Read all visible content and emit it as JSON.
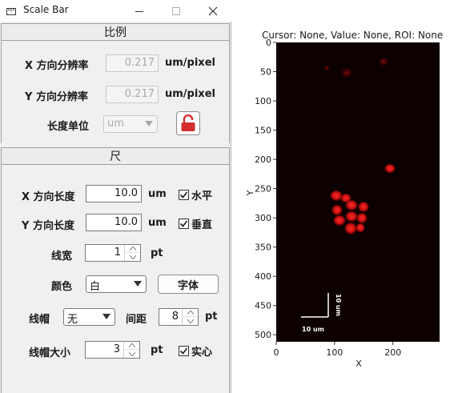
{
  "window": {
    "title": "Scale Bar",
    "icon": "ruler-icon"
  },
  "ratio_section": {
    "header": "比例",
    "x_res_label": "X 方向分辨率",
    "x_res_value": "0.217",
    "x_res_unit": "um/pixel",
    "y_res_label": "Y 方向分辨率",
    "y_res_value": "0.217",
    "y_res_unit": "um/pixel",
    "length_unit_label": "长度单位",
    "length_unit_value": "um",
    "lock_icon": "lock-icon",
    "lock_color": "#d32f2f"
  },
  "ruler_section": {
    "header": "尺",
    "x_len_label": "X 方向长度",
    "x_len_value": "10.0",
    "x_len_unit": "um",
    "horizontal_label": "水平",
    "horizontal_checked": true,
    "y_len_label": "Y 方向长度",
    "y_len_value": "10.0",
    "y_len_unit": "um",
    "vertical_label": "垂直",
    "vertical_checked": true,
    "line_width_label": "线宽",
    "line_width_value": "1",
    "line_width_unit": "pt",
    "color_label": "颜色",
    "color_value": "白",
    "font_button": "字体",
    "cap_label": "线帽",
    "cap_value": "无",
    "gap_label": "间距",
    "gap_value": "8",
    "gap_unit": "pt",
    "cap_size_label": "线帽大小",
    "cap_size_value": "3",
    "cap_size_unit": "pt",
    "solid_label": "实心",
    "solid_checked": true
  },
  "plot": {
    "cursor_info": "Cursor: None,   Value: None,   ROI: None",
    "x_axis_label": "X",
    "y_axis_label": "Y",
    "x_ticks": [
      "0",
      "100",
      "200"
    ],
    "y_ticks": [
      "0",
      "50",
      "100",
      "150",
      "200",
      "250",
      "300",
      "350",
      "400",
      "450",
      "500"
    ],
    "x_range": [
      0,
      280
    ],
    "y_range": [
      0,
      512
    ],
    "scalebar_h_label": "10 um",
    "scalebar_v_label": "10 um",
    "image_bg": "#0d0000",
    "signal_color": "#e01010"
  }
}
